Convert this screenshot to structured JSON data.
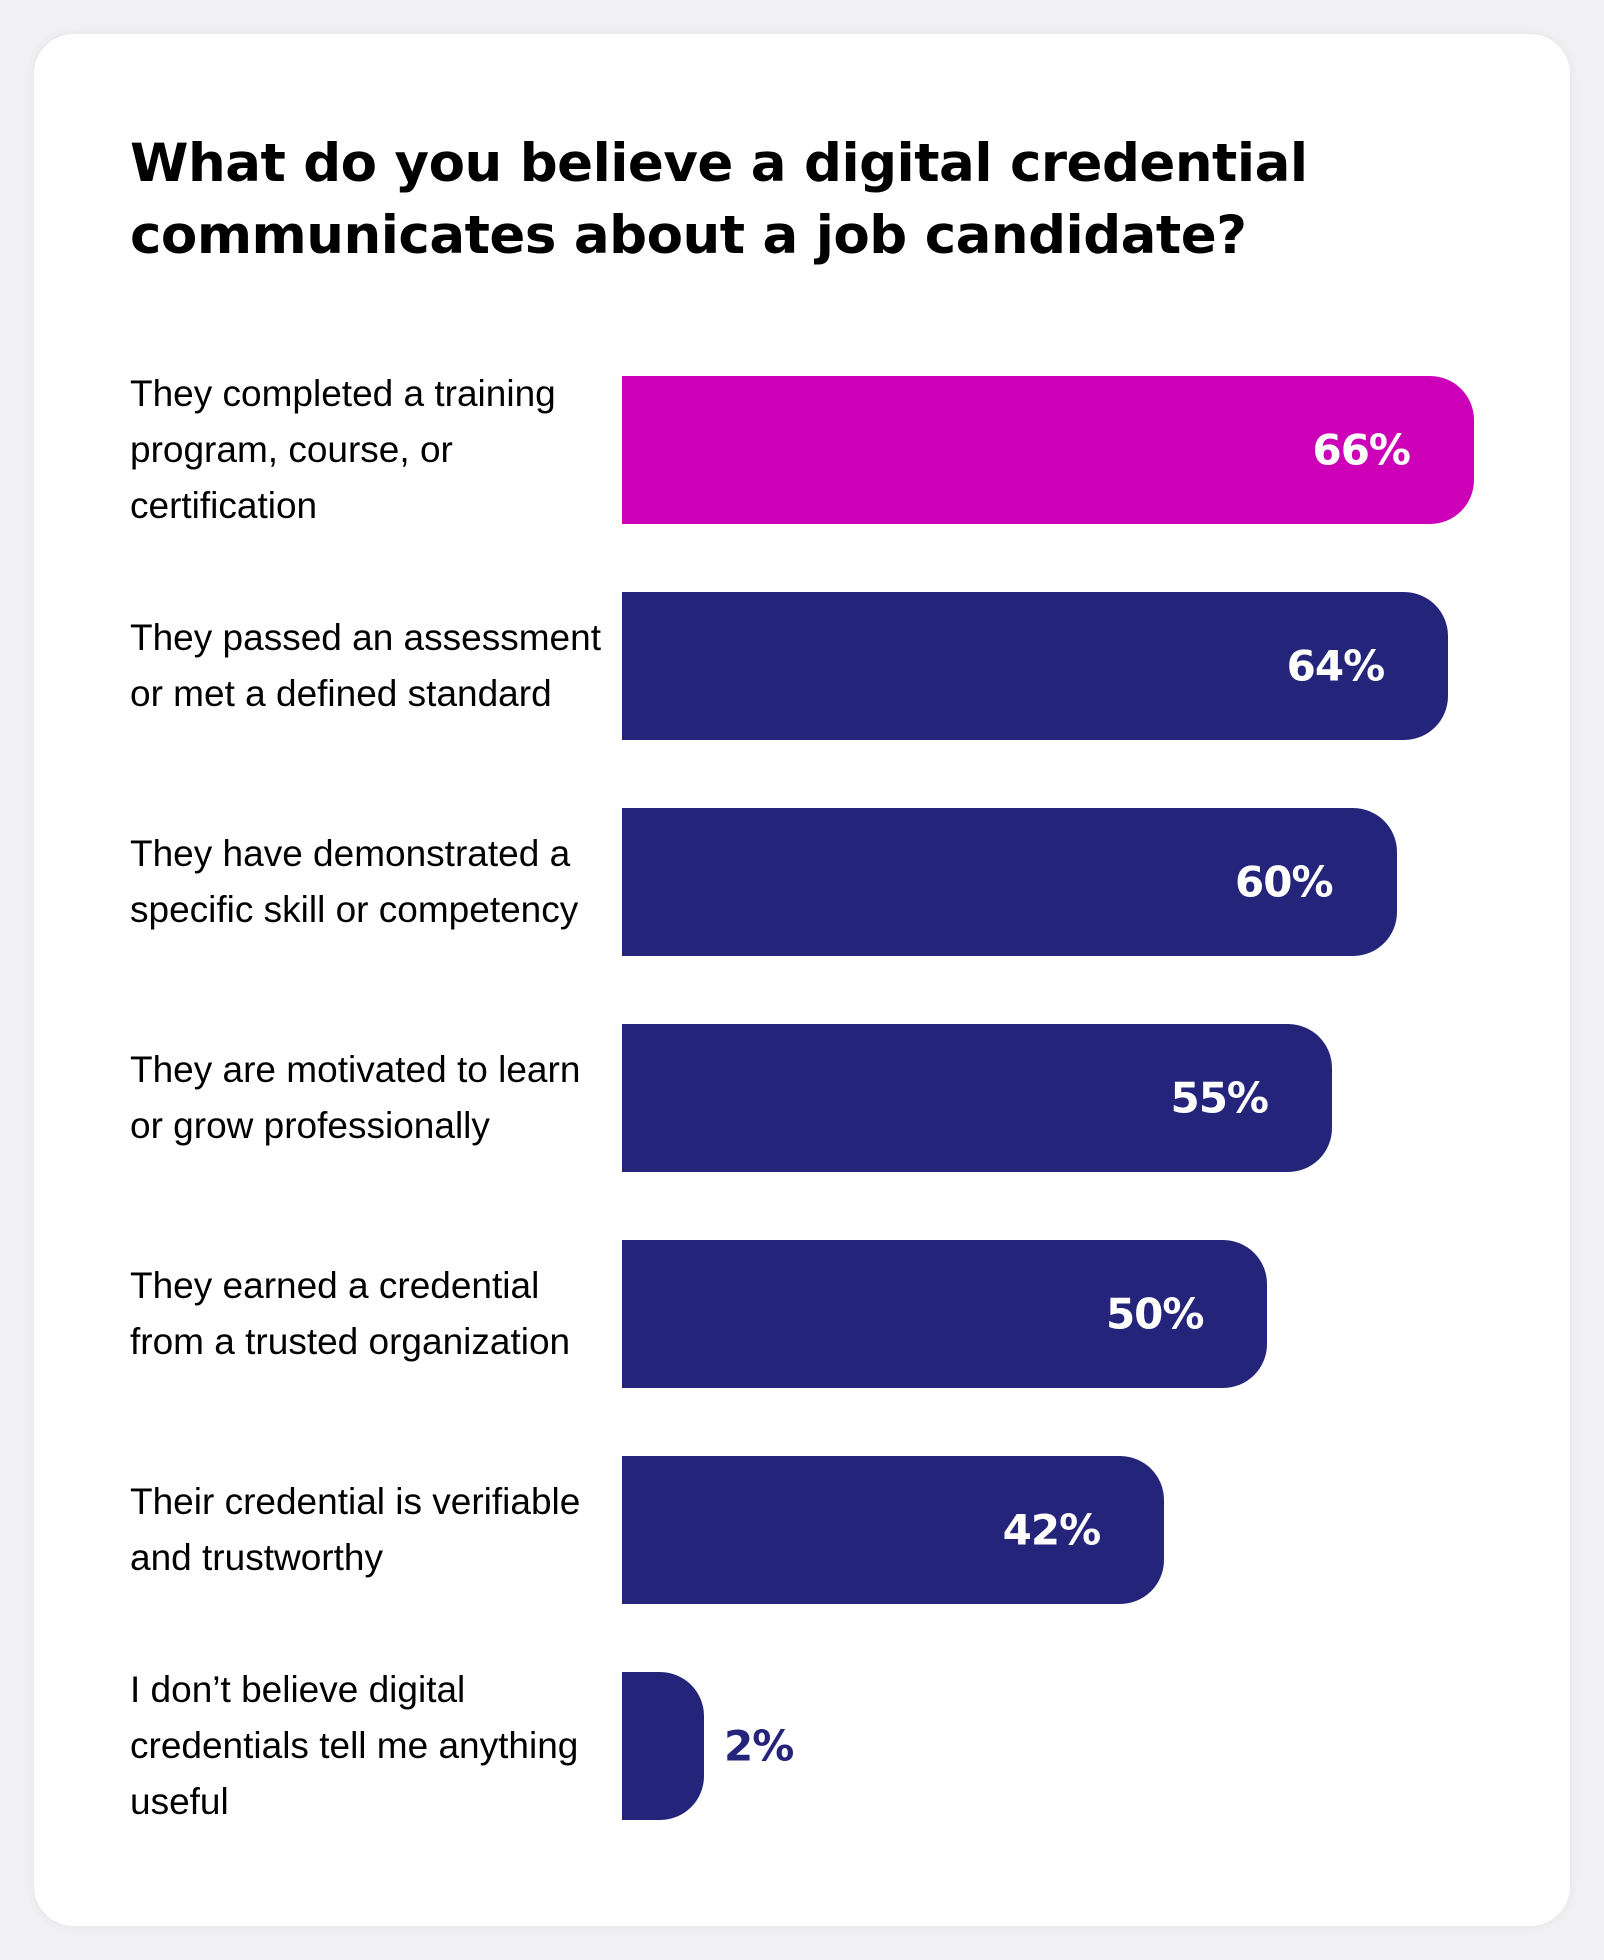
{
  "colors": {
    "highlight": "#cc00b6",
    "bar": "#24257a",
    "value_inside": "#ffffff",
    "value_outside": "#24257a"
  },
  "chart_data": {
    "type": "bar",
    "orientation": "horizontal",
    "title": "What do you believe a digital credential communicates about a job candidate?",
    "categories": [
      "They completed a training program, course, or certification",
      "They passed an assessment or met a defined standard",
      "They have demonstrated a specific skill or competency",
      "They are motivated to learn or grow professionally",
      "They earned a credential from a trusted organization",
      "Their credential is verifiable and trustworthy",
      "I don’t believe digital credentials tell me anything useful"
    ],
    "values": [
      66,
      64,
      60,
      55,
      50,
      42,
      2
    ],
    "value_labels": [
      "66%",
      "64%",
      "60%",
      "55%",
      "50%",
      "42%",
      "2%"
    ],
    "highlight_index": 0,
    "unit": "%",
    "xlim": [
      0,
      66
    ]
  }
}
